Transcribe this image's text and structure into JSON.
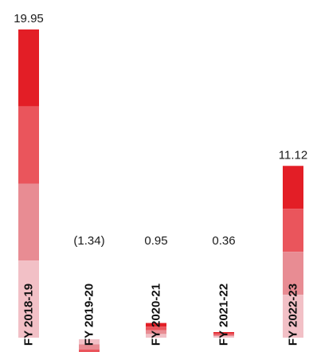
{
  "chart_data": {
    "type": "bar",
    "categories": [
      "FY 2018-19",
      "FY 2019-20",
      "FY 2020-21",
      "FY 2021-22",
      "FY 2022-23"
    ],
    "values": [
      19.95,
      -1.34,
      0.95,
      0.36,
      11.12
    ],
    "value_labels": [
      "19.95",
      "(1.34)",
      "0.95",
      "0.36",
      "11.12"
    ],
    "title": "",
    "xlabel": "",
    "ylabel": "",
    "ylim": [
      -2.0,
      20.0
    ],
    "grid": false,
    "legend": "none",
    "colors": {
      "band_top": "#e31e26",
      "band_mid": "#ea555c",
      "band_low": "#e88c93",
      "band_base": "#f2c0c6",
      "label_text": "#1a1a1a",
      "background": "#ffffff"
    }
  }
}
